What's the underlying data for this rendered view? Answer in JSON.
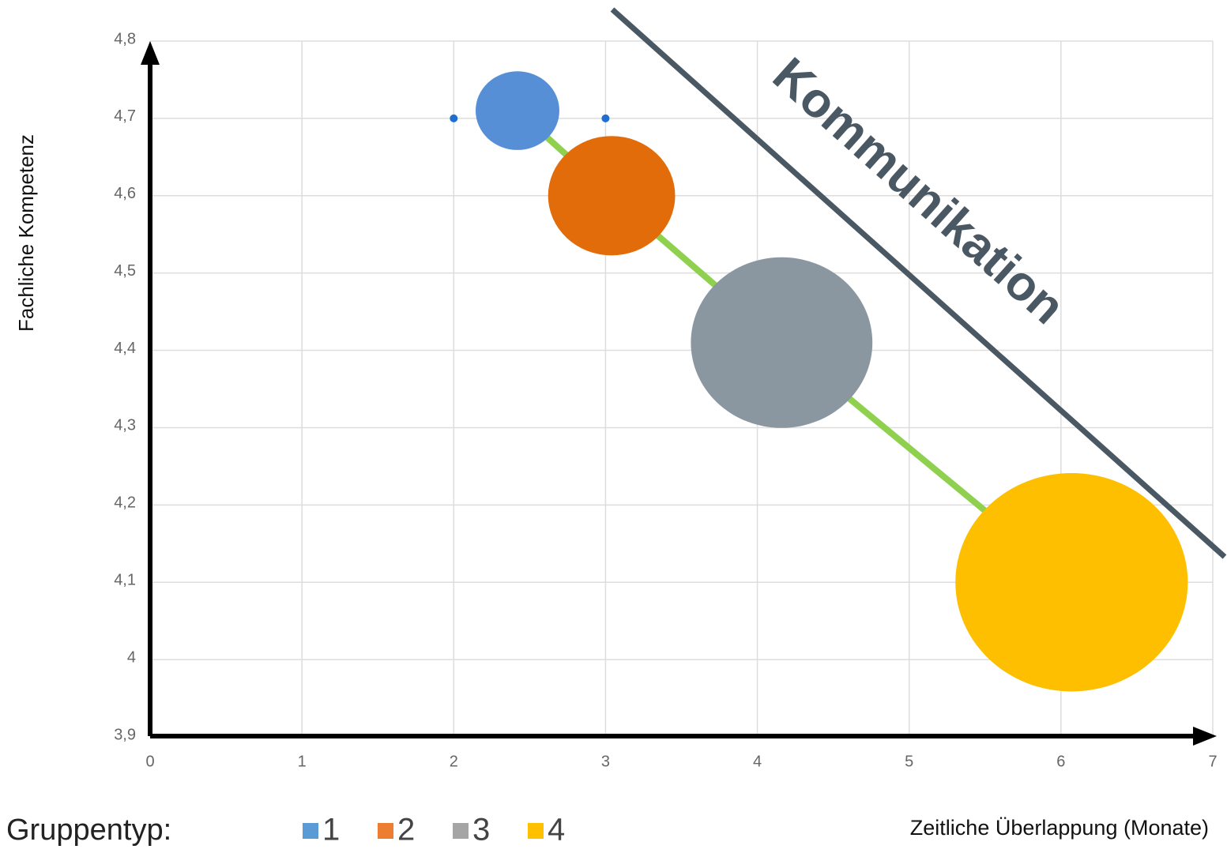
{
  "chart_data": {
    "type": "bubble",
    "x_label": "Zeitliche Überlappung (Monate)",
    "y_label": "Fachliche Kompetenz",
    "legend_title": "Gruppentyp:",
    "annotation": "Kommunikation",
    "series": [
      {
        "name": "1",
        "color": "#578fd6",
        "legend_color": "#5b9bd5",
        "x": [
          2.42
        ],
        "y": [
          4.71
        ],
        "size": [
          1
        ]
      },
      {
        "name": "2",
        "color": "#e36c0a",
        "legend_color": "#ed7d31",
        "x": [
          3.04
        ],
        "y": [
          4.6
        ],
        "size": [
          2.3
        ]
      },
      {
        "name": "3",
        "color": "#8a96a0",
        "legend_color": "#a5a5a5",
        "x": [
          4.16
        ],
        "y": [
          4.41
        ],
        "size": [
          4.7
        ]
      },
      {
        "name": "4",
        "color": "#fdbf00",
        "legend_color": "#ffc000",
        "x": [
          6.07
        ],
        "y": [
          4.1
        ],
        "size": [
          7.7
        ]
      }
    ],
    "points": {
      "color": "#1f6fd0",
      "x": [
        2,
        3
      ],
      "y": [
        4.7,
        4.7
      ]
    },
    "trend_color": "#8fd14f",
    "xlim": [
      0,
      7
    ],
    "ylim": [
      3.9,
      4.8
    ],
    "xticks": [
      0,
      1,
      2,
      3,
      4,
      5,
      6,
      7
    ],
    "yticks": [
      {
        "value": 3.9,
        "label": "3,9"
      },
      4,
      {
        "value": 4.1,
        "label": "4,1"
      },
      {
        "value": 4.2,
        "label": "4,2"
      },
      {
        "value": 4.3,
        "label": "4,3"
      },
      {
        "value": 4.4,
        "label": "4,4"
      },
      {
        "value": 4.5,
        "label": "4,5"
      },
      {
        "value": 4.6,
        "label": "4,6"
      },
      {
        "value": 4.7,
        "label": "4,7"
      },
      {
        "value": 4.8,
        "label": "4,8"
      }
    ],
    "grid": true
  }
}
